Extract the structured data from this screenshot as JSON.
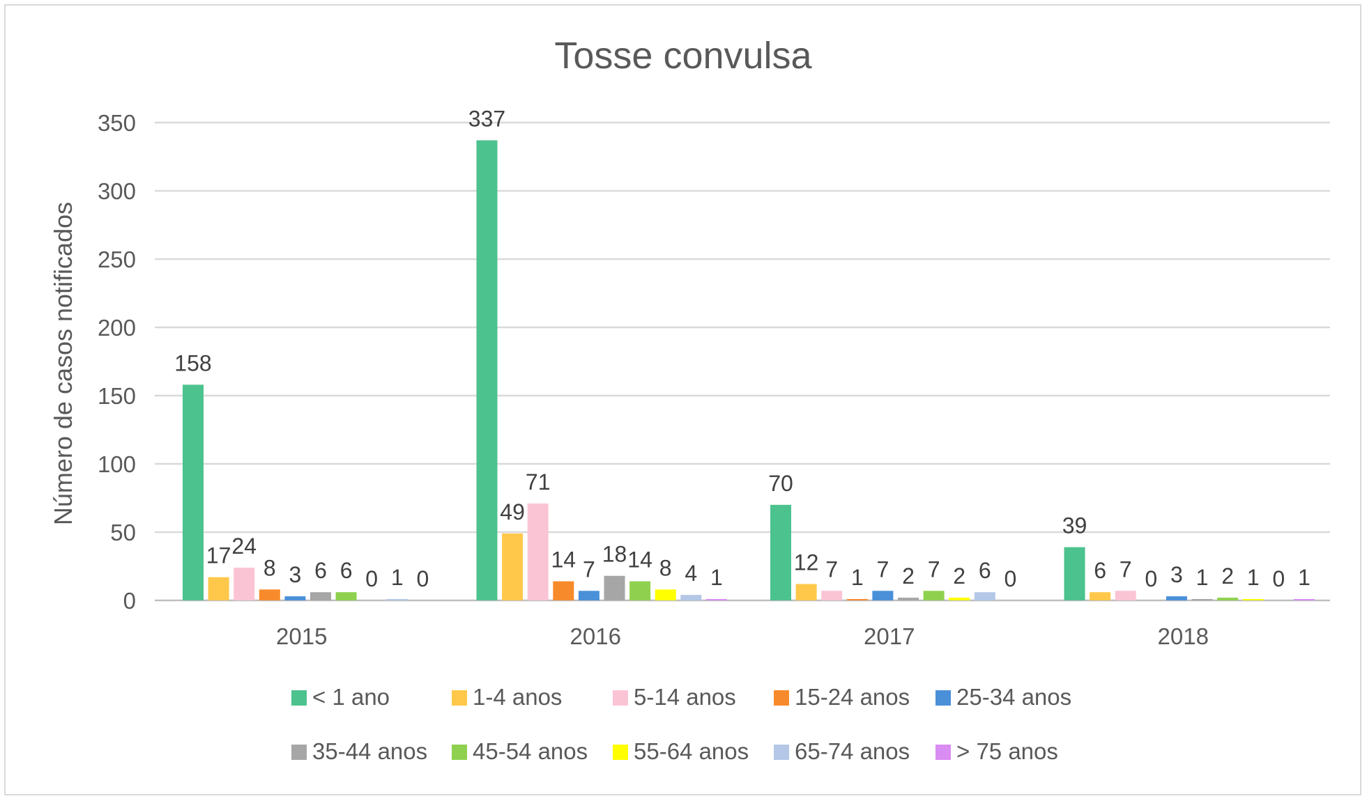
{
  "chart_data": {
    "type": "bar",
    "title": "Tosse convulsa",
    "xlabel": "",
    "ylabel": "Número de casos notificados",
    "ylim": [
      0,
      350
    ],
    "yticks": [
      0,
      50,
      100,
      150,
      200,
      250,
      300,
      350
    ],
    "grid": true,
    "legend_position": "bottom",
    "categories": [
      "2015",
      "2016",
      "2017",
      "2018"
    ],
    "series": [
      {
        "name": "< 1 ano",
        "color": "#4cc28e",
        "values": [
          158,
          337,
          70,
          39
        ]
      },
      {
        "name": "1-4 anos",
        "color": "#ffc84a",
        "values": [
          17,
          49,
          12,
          6
        ]
      },
      {
        "name": "5-14 anos",
        "color": "#fbc4d5",
        "values": [
          24,
          71,
          7,
          7
        ]
      },
      {
        "name": "15-24 anos",
        "color": "#f78b2b",
        "values": [
          8,
          14,
          1,
          0
        ]
      },
      {
        "name": "25-34 anos",
        "color": "#4a90d9",
        "values": [
          3,
          7,
          7,
          3
        ]
      },
      {
        "name": "35-44 anos",
        "color": "#a6a6a6",
        "values": [
          6,
          18,
          2,
          1
        ]
      },
      {
        "name": "45-54 anos",
        "color": "#8fd14f",
        "values": [
          6,
          14,
          7,
          2
        ]
      },
      {
        "name": "55-64 anos",
        "color": "#ffff00",
        "values": [
          0,
          8,
          2,
          1
        ]
      },
      {
        "name": "65-74 anos",
        "color": "#b4c7e7",
        "values": [
          1,
          4,
          6,
          0
        ]
      },
      {
        "name": "> 75 anos",
        "color": "#d98cf2",
        "values": [
          0,
          1,
          0,
          1
        ]
      }
    ]
  }
}
